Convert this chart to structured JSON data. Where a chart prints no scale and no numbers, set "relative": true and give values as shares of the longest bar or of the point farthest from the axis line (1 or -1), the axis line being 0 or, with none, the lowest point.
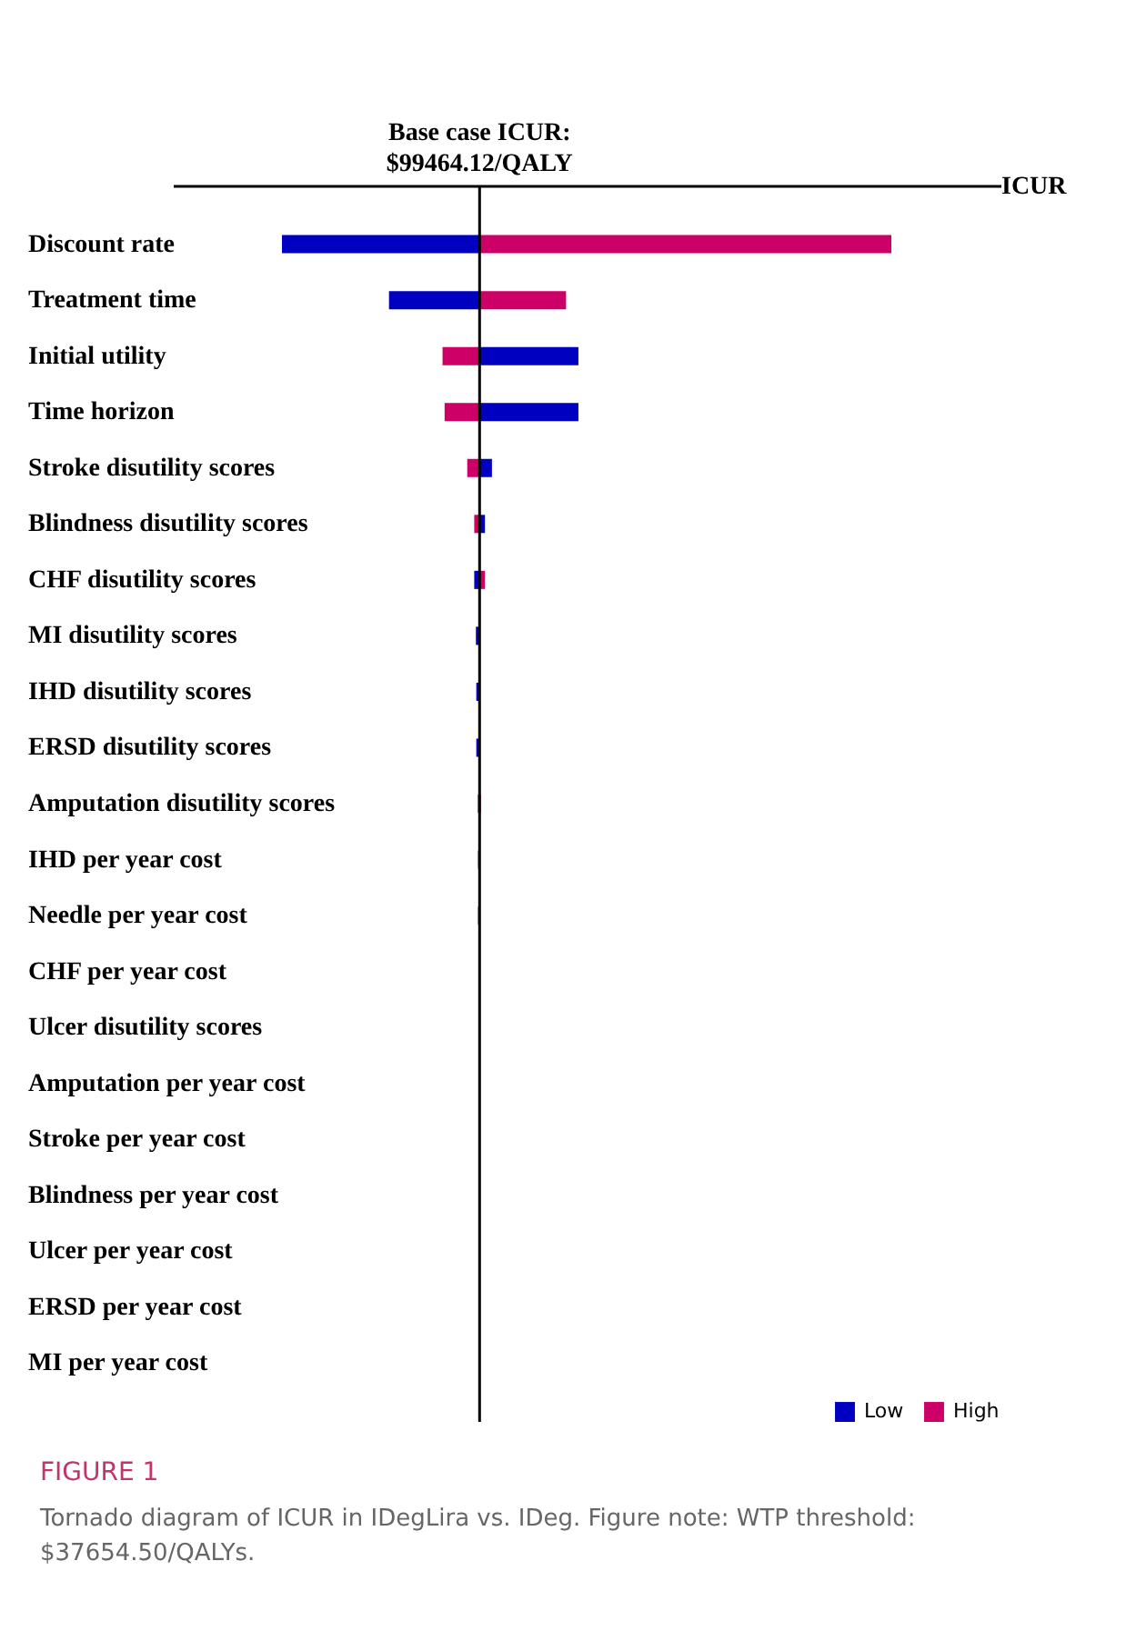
{
  "chart_data": {
    "type": "bar",
    "orientation": "horizontal",
    "relative": true,
    "xlabel": "ICUR",
    "categories": [
      "Discount rate",
      "Treatment time",
      "Initial utility",
      "Time horizon",
      "Stroke disutility scores",
      "Blindness disutility scores",
      "CHF disutility scores",
      "MI disutility scores",
      "IHD disutility scores",
      "ERSD disutility scores",
      "Amputation disutility scores",
      "IHD per year cost",
      "Needle per year cost",
      "CHF per year cost",
      "Ulcer disutility scores",
      "Amputation per year cost",
      "Stroke per year cost",
      "Blindness per year cost",
      "Ulcer per year cost",
      "ERSD per year cost",
      "MI per year cost"
    ],
    "series": [
      {
        "name": "Low",
        "color": "#0000c0",
        "values": [
          -0.48,
          -0.22,
          0.24,
          0.24,
          0.03,
          0.013,
          -0.013,
          -0.009,
          -0.008,
          -0.008,
          -0.004,
          0,
          0,
          0,
          0,
          0,
          0,
          0,
          0,
          0,
          0
        ]
      },
      {
        "name": "High",
        "color": "#cc0066",
        "values": [
          1,
          0.21,
          -0.09,
          -0.085,
          -0.03,
          -0.013,
          0.013,
          null,
          null,
          null,
          0.003,
          -0.004,
          -0.004,
          null,
          0,
          0,
          0,
          0,
          0,
          0,
          0
        ]
      }
    ],
    "title": "Base case ICUR:\n$99464.12/QALY",
    "ref_lines": [
      {
        "axis": "x",
        "value": 0
      }
    ],
    "legend": "bottom right",
    "annotations": [
      "FIGURE 1",
      "Tornado diagram of ICUR in IDegLira vs. IDeg. Figure note: WTP threshold: $37654.50/QALYs."
    ]
  }
}
